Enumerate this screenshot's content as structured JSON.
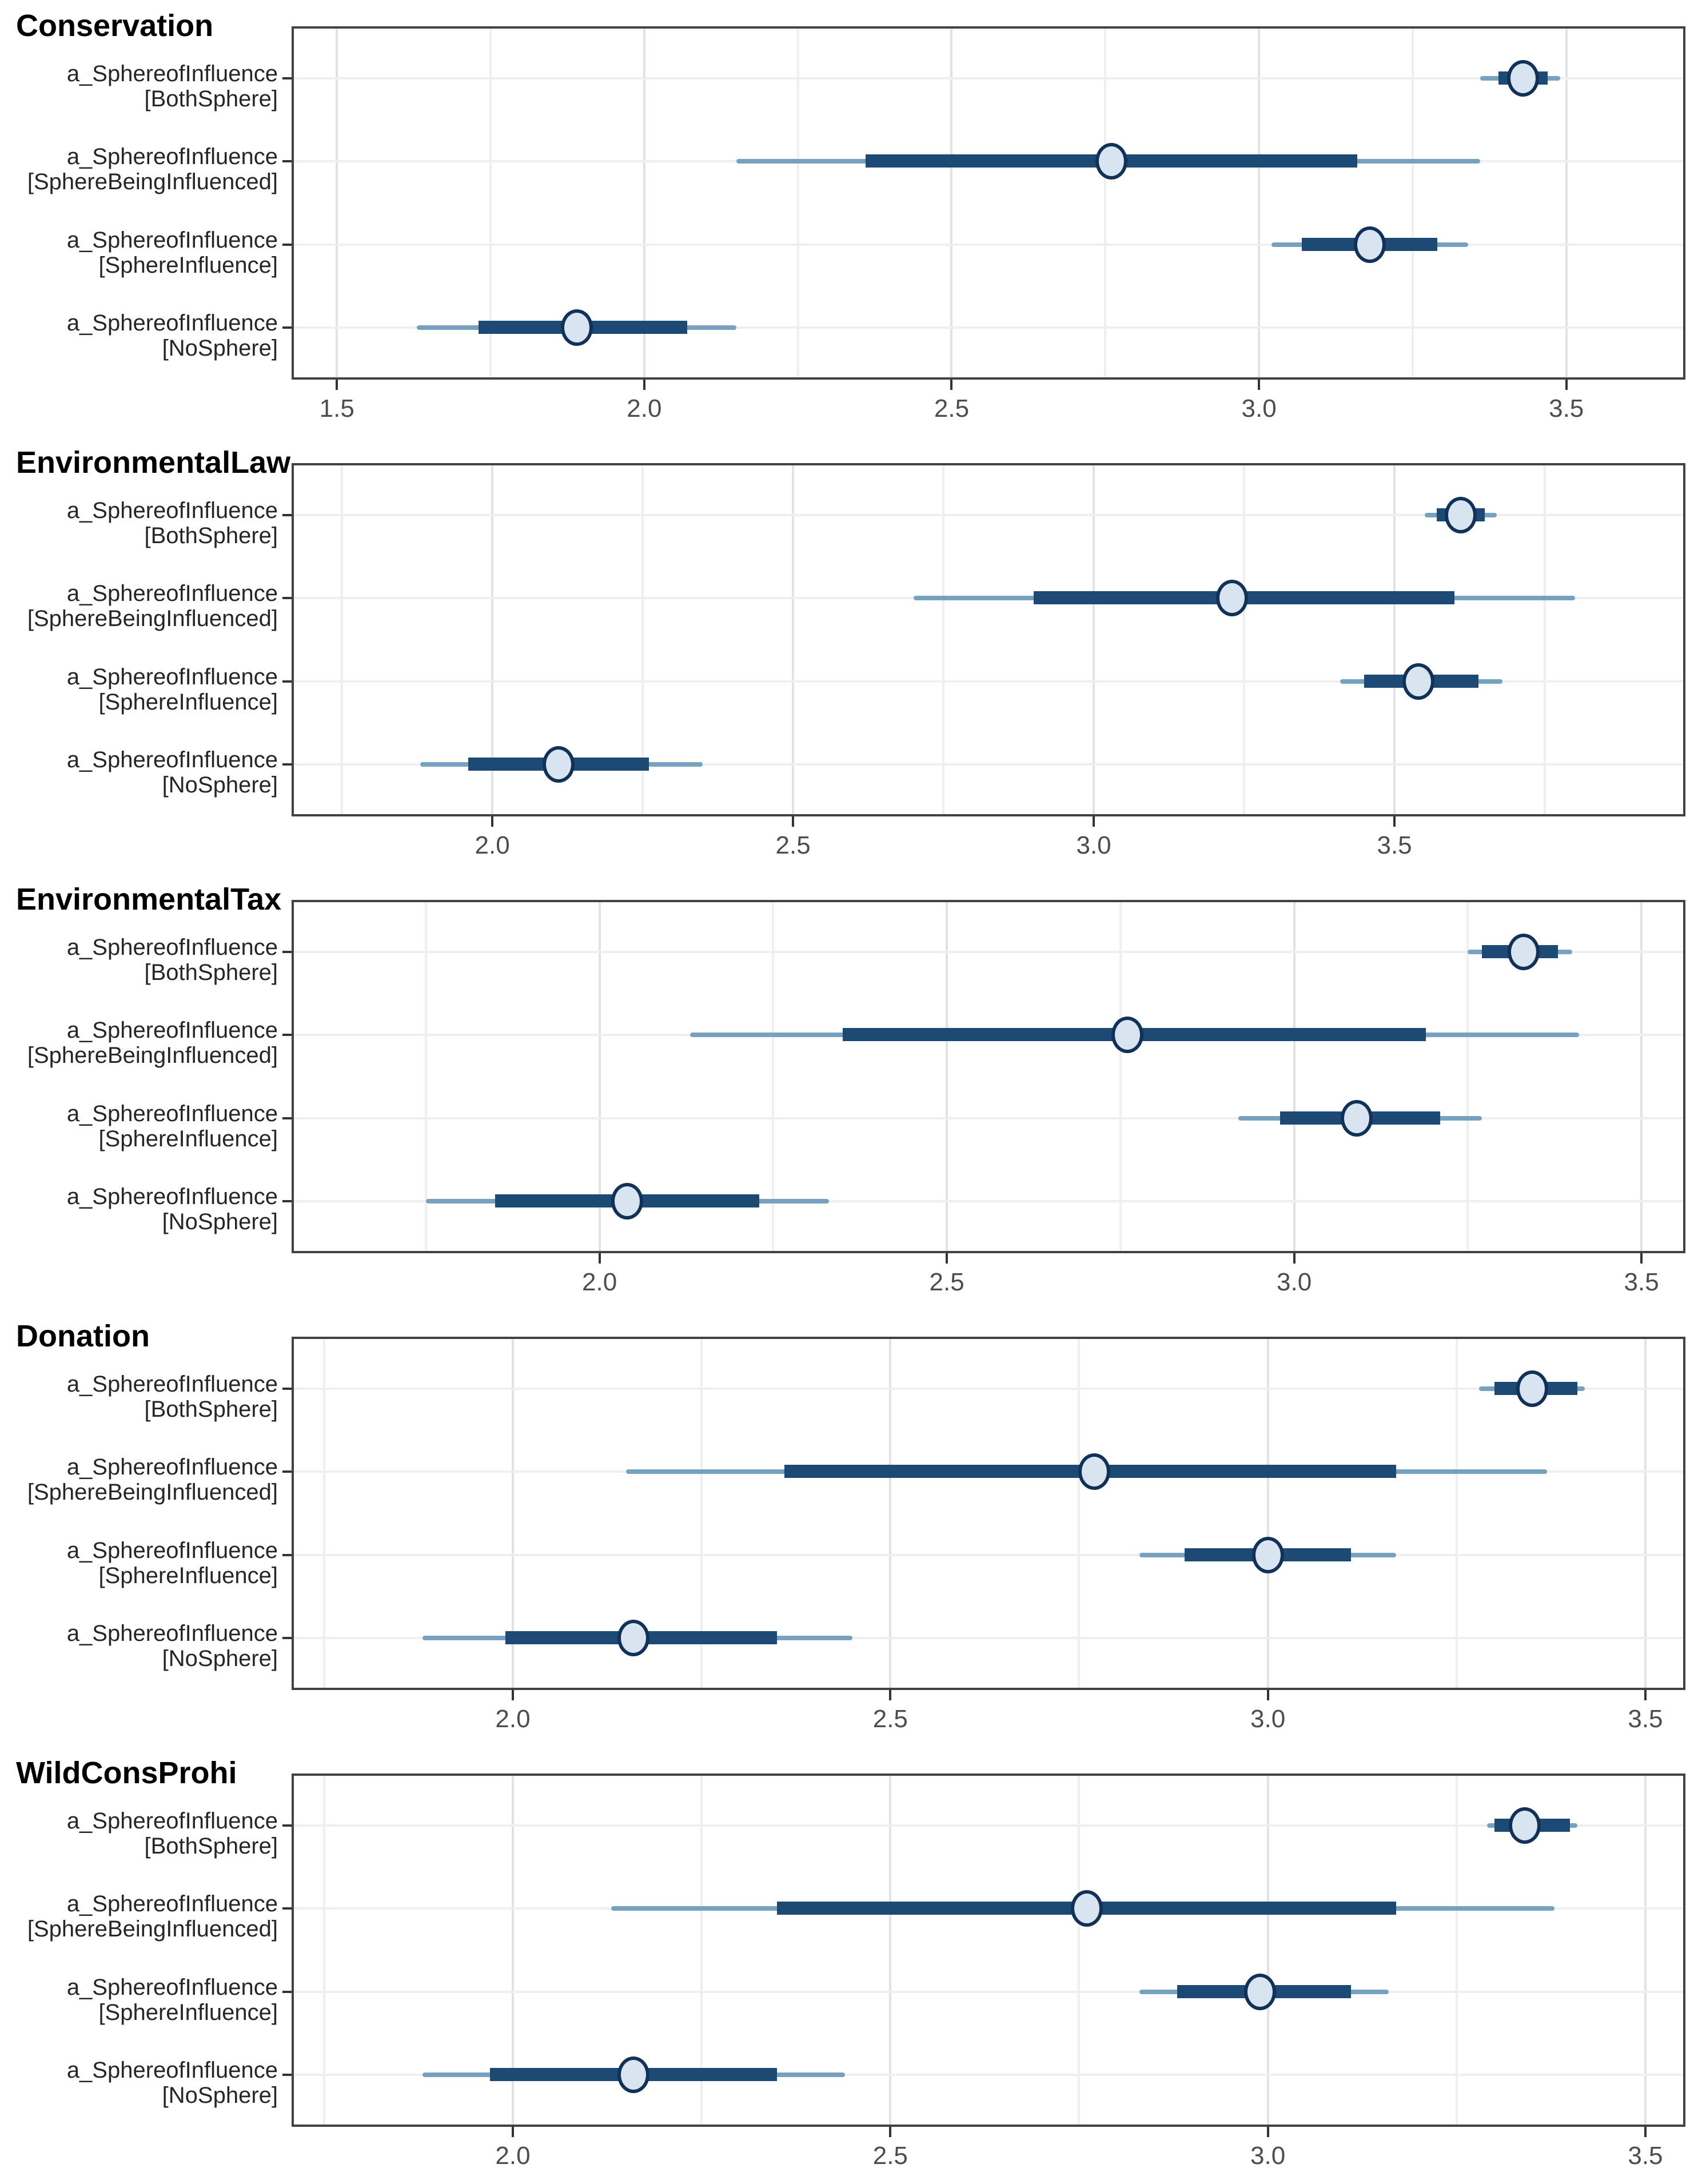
{
  "style": {
    "background": "#ffffff",
    "panel_border": "#424242",
    "grid_major": "#e2e2e2",
    "grid_minor": "#efefef",
    "grid_row": "#efefef",
    "interval_outer_color": "#76a2bf",
    "interval_inner_color": "#1c4a74",
    "point_fill": "#d9e4f1",
    "point_stroke": "#123158",
    "axis_tick_color": "#333333",
    "axis_text_color": "#4d4d4d",
    "y_label_color": "#262626",
    "title_color": "#000000"
  },
  "chart_data": [
    {
      "type": "scatter",
      "subtype": "interval-forest",
      "title": "Conservation",
      "xlabel": "",
      "ylabel": "",
      "legend": "none",
      "grid": "on",
      "x_domain": [
        1.43,
        3.69
      ],
      "x_ticks": [
        "1.5",
        "2.0",
        "2.5",
        "3.0",
        "3.5"
      ],
      "x_tick_values": [
        1.5,
        2.0,
        2.5,
        3.0,
        3.5
      ],
      "x_minor_values": [
        1.75,
        2.25,
        2.75,
        3.25
      ],
      "rows": [
        {
          "label_line1": "a_SphereofInfluence",
          "label_line2": "[BothSphere]",
          "point": 3.43,
          "inner": [
            3.39,
            3.47
          ],
          "outer": [
            3.36,
            3.49
          ]
        },
        {
          "label_line1": "a_SphereofInfluence",
          "label_line2": "[SphereBeingInfluenced]",
          "point": 2.76,
          "inner": [
            2.36,
            3.16
          ],
          "outer": [
            2.15,
            3.36
          ]
        },
        {
          "label_line1": "a_SphereofInfluence",
          "label_line2": "[SphereInfluence]",
          "point": 3.18,
          "inner": [
            3.07,
            3.29
          ],
          "outer": [
            3.02,
            3.34
          ]
        },
        {
          "label_line1": "a_SphereofInfluence",
          "label_line2": "[NoSphere]",
          "point": 1.89,
          "inner": [
            1.73,
            2.07
          ],
          "outer": [
            1.63,
            2.15
          ]
        }
      ]
    },
    {
      "type": "scatter",
      "subtype": "interval-forest",
      "title": "EnvironmentalLaw",
      "xlabel": "",
      "ylabel": "",
      "legend": "none",
      "grid": "on",
      "x_domain": [
        1.67,
        3.98
      ],
      "x_ticks": [
        "2.0",
        "2.5",
        "3.0",
        "3.5"
      ],
      "x_tick_values": [
        2.0,
        2.5,
        3.0,
        3.5
      ],
      "x_minor_values": [
        1.75,
        2.25,
        2.75,
        3.25,
        3.75
      ],
      "rows": [
        {
          "label_line1": "a_SphereofInfluence",
          "label_line2": "[BothSphere]",
          "point": 3.61,
          "inner": [
            3.57,
            3.65
          ],
          "outer": [
            3.55,
            3.67
          ]
        },
        {
          "label_line1": "a_SphereofInfluence",
          "label_line2": "[SphereBeingInfluenced]",
          "point": 3.23,
          "inner": [
            2.9,
            3.6
          ],
          "outer": [
            2.7,
            3.8
          ]
        },
        {
          "label_line1": "a_SphereofInfluence",
          "label_line2": "[SphereInfluence]",
          "point": 3.54,
          "inner": [
            3.45,
            3.64
          ],
          "outer": [
            3.41,
            3.68
          ]
        },
        {
          "label_line1": "a_SphereofInfluence",
          "label_line2": "[NoSphere]",
          "point": 2.11,
          "inner": [
            1.96,
            2.26
          ],
          "outer": [
            1.88,
            2.35
          ]
        }
      ]
    },
    {
      "type": "scatter",
      "subtype": "interval-forest",
      "title": "EnvironmentalTax",
      "xlabel": "",
      "ylabel": "",
      "legend": "none",
      "grid": "on",
      "x_domain": [
        1.56,
        3.56
      ],
      "x_ticks": [
        "2.0",
        "2.5",
        "3.0",
        "3.5"
      ],
      "x_tick_values": [
        2.0,
        2.5,
        3.0,
        3.5
      ],
      "x_minor_values": [
        1.75,
        2.25,
        2.75,
        3.25
      ],
      "rows": [
        {
          "label_line1": "a_SphereofInfluence",
          "label_line2": "[BothSphere]",
          "point": 3.33,
          "inner": [
            3.27,
            3.38
          ],
          "outer": [
            3.25,
            3.4
          ]
        },
        {
          "label_line1": "a_SphereofInfluence",
          "label_line2": "[SphereBeingInfluenced]",
          "point": 2.76,
          "inner": [
            2.35,
            3.19
          ],
          "outer": [
            2.13,
            3.41
          ]
        },
        {
          "label_line1": "a_SphereofInfluence",
          "label_line2": "[SphereInfluence]",
          "point": 3.09,
          "inner": [
            2.98,
            3.21
          ],
          "outer": [
            2.92,
            3.27
          ]
        },
        {
          "label_line1": "a_SphereofInfluence",
          "label_line2": "[NoSphere]",
          "point": 2.04,
          "inner": [
            1.85,
            2.23
          ],
          "outer": [
            1.75,
            2.33
          ]
        }
      ]
    },
    {
      "type": "scatter",
      "subtype": "interval-forest",
      "title": "Donation",
      "xlabel": "",
      "ylabel": "",
      "legend": "none",
      "grid": "on",
      "x_domain": [
        1.71,
        3.55
      ],
      "x_ticks": [
        "2.0",
        "2.5",
        "3.0",
        "3.5"
      ],
      "x_tick_values": [
        2.0,
        2.5,
        3.0,
        3.5
      ],
      "x_minor_values": [
        1.75,
        2.25,
        2.75,
        3.25
      ],
      "rows": [
        {
          "label_line1": "a_SphereofInfluence",
          "label_line2": "[BothSphere]",
          "point": 3.35,
          "inner": [
            3.3,
            3.41
          ],
          "outer": [
            3.28,
            3.42
          ]
        },
        {
          "label_line1": "a_SphereofInfluence",
          "label_line2": "[SphereBeingInfluenced]",
          "point": 2.77,
          "inner": [
            2.36,
            3.17
          ],
          "outer": [
            2.15,
            3.37
          ]
        },
        {
          "label_line1": "a_SphereofInfluence",
          "label_line2": "[SphereInfluence]",
          "point": 3.0,
          "inner": [
            2.89,
            3.11
          ],
          "outer": [
            2.83,
            3.17
          ]
        },
        {
          "label_line1": "a_SphereofInfluence",
          "label_line2": "[NoSphere]",
          "point": 2.16,
          "inner": [
            1.99,
            2.35
          ],
          "outer": [
            1.88,
            2.45
          ]
        }
      ]
    },
    {
      "type": "scatter",
      "subtype": "interval-forest",
      "title": "WildConsProhi",
      "xlabel": "",
      "ylabel": "",
      "legend": "none",
      "grid": "on",
      "x_domain": [
        1.71,
        3.55
      ],
      "x_ticks": [
        "2.0",
        "2.5",
        "3.0",
        "3.5"
      ],
      "x_tick_values": [
        2.0,
        2.5,
        3.0,
        3.5
      ],
      "x_minor_values": [
        1.75,
        2.25,
        2.75,
        3.25
      ],
      "rows": [
        {
          "label_line1": "a_SphereofInfluence",
          "label_line2": "[BothSphere]",
          "point": 3.34,
          "inner": [
            3.3,
            3.4
          ],
          "outer": [
            3.29,
            3.41
          ]
        },
        {
          "label_line1": "a_SphereofInfluence",
          "label_line2": "[SphereBeingInfluenced]",
          "point": 2.76,
          "inner": [
            2.35,
            3.17
          ],
          "outer": [
            2.13,
            3.38
          ]
        },
        {
          "label_line1": "a_SphereofInfluence",
          "label_line2": "[SphereInfluence]",
          "point": 2.99,
          "inner": [
            2.88,
            3.11
          ],
          "outer": [
            2.83,
            3.16
          ]
        },
        {
          "label_line1": "a_SphereofInfluence",
          "label_line2": "[NoSphere]",
          "point": 2.16,
          "inner": [
            1.97,
            2.35
          ],
          "outer": [
            1.88,
            2.44
          ]
        }
      ]
    }
  ]
}
